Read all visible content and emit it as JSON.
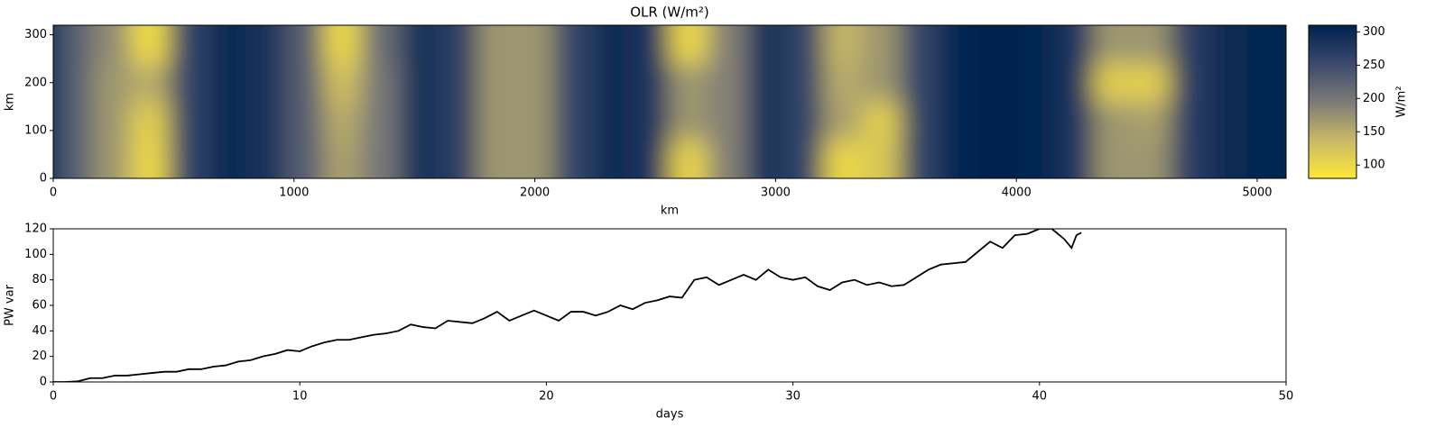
{
  "chart_data": [
    {
      "type": "heatmap",
      "title": "OLR (W/m²)",
      "xlabel": "km",
      "ylabel": "km",
      "xlim": [
        0,
        5120
      ],
      "ylim": [
        0,
        320
      ],
      "xticks": [
        0,
        1000,
        2000,
        3000,
        4000,
        5000
      ],
      "yticks": [
        0,
        100,
        200,
        300
      ],
      "x": [
        80,
        240,
        400,
        560,
        720,
        880,
        1040,
        1200,
        1360,
        1520,
        1680,
        1840,
        2000,
        2160,
        2320,
        2480,
        2640,
        2800,
        2960,
        3120,
        3280,
        3440,
        3600,
        3760,
        3920,
        4080,
        4240,
        4400,
        4560,
        4720,
        4880,
        5040
      ],
      "y": [
        40,
        120,
        200,
        280
      ],
      "z": [
        [
          230,
          170,
          100,
          260,
          300,
          290,
          230,
          160,
          200,
          290,
          270,
          170,
          170,
          260,
          300,
          280,
          105,
          190,
          290,
          260,
          100,
          120,
          260,
          305,
          310,
          305,
          280,
          170,
          170,
          270,
          300,
          305
        ],
        [
          230,
          170,
          110,
          260,
          300,
          290,
          230,
          150,
          200,
          290,
          270,
          170,
          170,
          260,
          300,
          280,
          170,
          190,
          290,
          260,
          160,
          110,
          260,
          305,
          310,
          305,
          280,
          170,
          160,
          270,
          300,
          305
        ],
        [
          230,
          170,
          150,
          260,
          300,
          290,
          230,
          130,
          200,
          290,
          270,
          170,
          170,
          260,
          300,
          280,
          170,
          190,
          290,
          260,
          150,
          170,
          260,
          305,
          310,
          305,
          280,
          110,
          110,
          270,
          300,
          305
        ],
        [
          230,
          180,
          95,
          260,
          300,
          290,
          230,
          100,
          210,
          290,
          270,
          170,
          170,
          260,
          300,
          280,
          100,
          190,
          290,
          260,
          140,
          170,
          260,
          305,
          310,
          305,
          280,
          170,
          170,
          270,
          300,
          305
        ]
      ],
      "colorbar": {
        "label": "W/m²",
        "clim": [
          80,
          310
        ],
        "ticks": [
          100,
          150,
          200,
          250,
          300
        ],
        "colors": [
          "#fee838",
          "#c8b866",
          "#7c7b78",
          "#3b496c",
          "#00224e"
        ]
      }
    },
    {
      "type": "line",
      "xlabel": "days",
      "ylabel": "PW var",
      "color": "#000000",
      "xlim": [
        0,
        50
      ],
      "ylim": [
        0,
        120
      ],
      "xticks": [
        0,
        10,
        20,
        30,
        40,
        50
      ],
      "yticks": [
        0,
        20,
        40,
        60,
        80,
        100,
        120
      ],
      "x": [
        0,
        0.5,
        1,
        1.5,
        2,
        2.5,
        3,
        3.5,
        4,
        4.5,
        5,
        5.5,
        6,
        6.5,
        7,
        7.5,
        8,
        8.5,
        9,
        9.5,
        10,
        10.5,
        11,
        11.5,
        12,
        12.5,
        13,
        13.5,
        14,
        14.5,
        15,
        15.5,
        16,
        16.5,
        17,
        17.5,
        18,
        18.5,
        19,
        19.5,
        20,
        20.5,
        21,
        21.5,
        22,
        22.5,
        23,
        23.5,
        24,
        24.5,
        25,
        25.5,
        26,
        26.5,
        27,
        27.5,
        28,
        28.5,
        29,
        29.5,
        30,
        30.5,
        31,
        31.5,
        32,
        32.5,
        33,
        33.5,
        34,
        34.5,
        35,
        35.5,
        36,
        36.5,
        37,
        37.5,
        38,
        38.5,
        39,
        39.5,
        40,
        40.5,
        41,
        41.3,
        41.5,
        41.7
      ],
      "values": [
        0,
        0,
        0.5,
        3,
        3,
        5,
        5,
        6,
        7,
        8,
        8,
        10,
        10,
        12,
        13,
        16,
        17,
        20,
        22,
        25,
        24,
        28,
        31,
        33,
        33,
        35,
        37,
        38,
        40,
        45,
        43,
        42,
        48,
        47,
        46,
        50,
        55,
        48,
        52,
        56,
        52,
        48,
        55,
        55,
        52,
        55,
        60,
        57,
        62,
        64,
        67,
        66,
        80,
        82,
        76,
        80,
        84,
        80,
        88,
        82,
        80,
        82,
        75,
        72,
        78,
        80,
        76,
        78,
        75,
        76,
        82,
        88,
        92,
        93,
        94,
        102,
        110,
        105,
        115,
        116,
        120,
        120,
        112,
        105,
        115,
        117
      ]
    }
  ]
}
